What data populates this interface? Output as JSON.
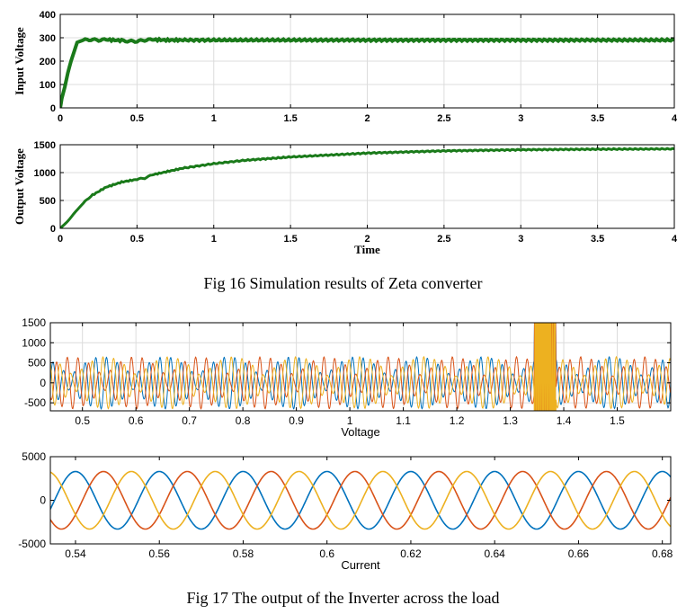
{
  "figure16": {
    "caption": "Fig 16 Simulation results of Zeta converter"
  },
  "figure17": {
    "caption": "Fig 17 The output of the Inverter across the load"
  },
  "chart_data": [
    {
      "id": "input-voltage",
      "type": "line",
      "title": "",
      "ylabel": "Input Voltage",
      "xlabel": "",
      "xlim": [
        0,
        4
      ],
      "ylim": [
        0,
        400
      ],
      "xticks": [
        0,
        0.5,
        1,
        1.5,
        2,
        2.5,
        3,
        3.5,
        4
      ],
      "yticks": [
        0,
        100,
        200,
        300,
        400
      ],
      "grid": true,
      "series": [
        {
          "color": "#1a7a1a",
          "x": [
            0,
            0.01,
            0.03,
            0.05,
            0.07,
            0.09,
            0.11,
            0.13,
            0.15,
            0.2,
            0.25,
            0.3,
            0.4,
            0.45,
            0.5,
            0.55,
            0.6,
            0.7,
            0.8,
            1.0,
            1.5,
            2.0,
            2.5,
            3.0,
            3.5,
            4.0
          ],
          "y": [
            0,
            40,
            90,
            150,
            200,
            240,
            280,
            285,
            290,
            292,
            290,
            292,
            288,
            285,
            285,
            290,
            292,
            290,
            290,
            290,
            290,
            290,
            290,
            290,
            290,
            290
          ]
        }
      ]
    },
    {
      "id": "output-voltage",
      "type": "line",
      "title": "",
      "ylabel": "Output Voltage",
      "xlabel": "Time",
      "xlim": [
        0,
        4
      ],
      "ylim": [
        0,
        1500
      ],
      "xticks": [
        0,
        0.5,
        1,
        1.5,
        2,
        2.5,
        3,
        3.5,
        4
      ],
      "yticks": [
        0,
        500,
        1000,
        1500
      ],
      "grid": true,
      "series": [
        {
          "color": "#1a7a1a",
          "x": [
            0,
            0.05,
            0.1,
            0.15,
            0.2,
            0.3,
            0.4,
            0.5,
            0.55,
            0.6,
            0.7,
            0.8,
            1.0,
            1.2,
            1.5,
            2.0,
            2.5,
            3.0,
            3.5,
            4.0
          ],
          "y": [
            0,
            130,
            300,
            450,
            580,
            740,
            830,
            880,
            900,
            960,
            1020,
            1080,
            1160,
            1220,
            1280,
            1350,
            1390,
            1410,
            1420,
            1425
          ]
        }
      ]
    },
    {
      "id": "inverter-voltage",
      "type": "line",
      "title": "",
      "xlabel": "Voltage",
      "ylabel": "",
      "xlim": [
        0.44,
        1.6
      ],
      "ylim": [
        -700,
        1500
      ],
      "xticks": [
        0.5,
        0.6,
        0.7,
        0.8,
        0.9,
        1,
        1.1,
        1.2,
        1.3,
        1.4,
        1.5
      ],
      "yticks": [
        -500,
        0,
        500,
        1000,
        1500
      ],
      "grid": true,
      "waveform": {
        "frequency_hz": 50,
        "amplitude_approx": 650,
        "transient_at": 1.36,
        "phases": 3
      },
      "series": [
        {
          "color": "#0072bd"
        },
        {
          "color": "#d95319"
        },
        {
          "color": "#edb120"
        }
      ]
    },
    {
      "id": "inverter-current",
      "type": "line",
      "title": "",
      "xlabel": "Current",
      "ylabel": "",
      "xlim": [
        0.534,
        0.682
      ],
      "ylim": [
        -5000,
        5000
      ],
      "xticks": [
        0.54,
        0.56,
        0.58,
        0.6,
        0.62,
        0.64,
        0.66,
        0.68
      ],
      "yticks": [
        -5000,
        0,
        5000
      ],
      "grid": false,
      "waveform": {
        "frequency_hz": 50,
        "amplitude": 3300,
        "phases": 3
      },
      "series": [
        {
          "color": "#0072bd",
          "phase_deg": 90
        },
        {
          "color": "#d95319",
          "phase_deg": -30
        },
        {
          "color": "#edb120",
          "phase_deg": 210
        }
      ]
    }
  ]
}
